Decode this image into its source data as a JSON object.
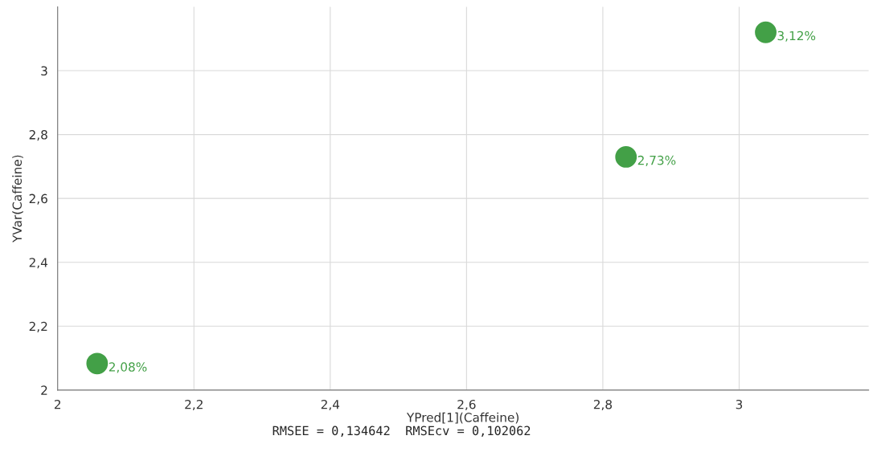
{
  "chart_data": {
    "type": "scatter",
    "xlabel": "YPred[1](Caffeine)",
    "ylabel": "YVar(Caffeine)",
    "x": [
      2.058,
      2.834,
      3.039
    ],
    "series": [
      {
        "color": "#43a047",
        "values": [
          2.083,
          2.73,
          3.12
        ],
        "value_labels": [
          "2,08%",
          "2,73%",
          "3,12%"
        ]
      }
    ],
    "xlim": [
      2,
      3.19
    ],
    "ylim": [
      2,
      3.2
    ],
    "xticks": [
      2,
      {
        "value": 2.2,
        "label": "2,2"
      },
      {
        "value": 2.4,
        "label": "2,4"
      },
      {
        "value": 2.6,
        "label": "2,6"
      },
      {
        "value": 2.8,
        "label": "2,8"
      },
      3
    ],
    "yticks": [
      2,
      {
        "value": 2.2,
        "label": "2,2"
      },
      {
        "value": 2.4,
        "label": "2,4"
      },
      {
        "value": 2.6,
        "label": "2,6"
      },
      {
        "value": 2.8,
        "label": "2,8"
      },
      3
    ],
    "grid": true,
    "marker": "circle",
    "annotations": [
      "RMSEE = 0,134642  RMSEcv = 0,102062"
    ]
  }
}
